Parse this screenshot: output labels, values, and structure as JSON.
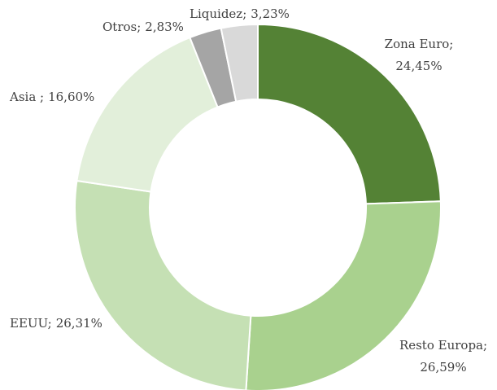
{
  "chart_data": {
    "type": "donut",
    "categories": [
      "Zona Euro;",
      "Resto Europa;",
      "EEUU;",
      "Asia ;",
      "Otros;",
      "Liquidez;"
    ],
    "values": [
      24.45,
      26.59,
      26.31,
      16.6,
      2.83,
      3.23
    ],
    "value_labels": [
      "24,45%",
      "26,59%",
      "26,31%",
      "16,60%",
      "2,83%",
      "3,23%"
    ],
    "colors": [
      "#548235",
      "#a9d18e",
      "#c5e0b4",
      "#e2efda",
      "#a5a5a5",
      "#d9d9d9"
    ]
  }
}
